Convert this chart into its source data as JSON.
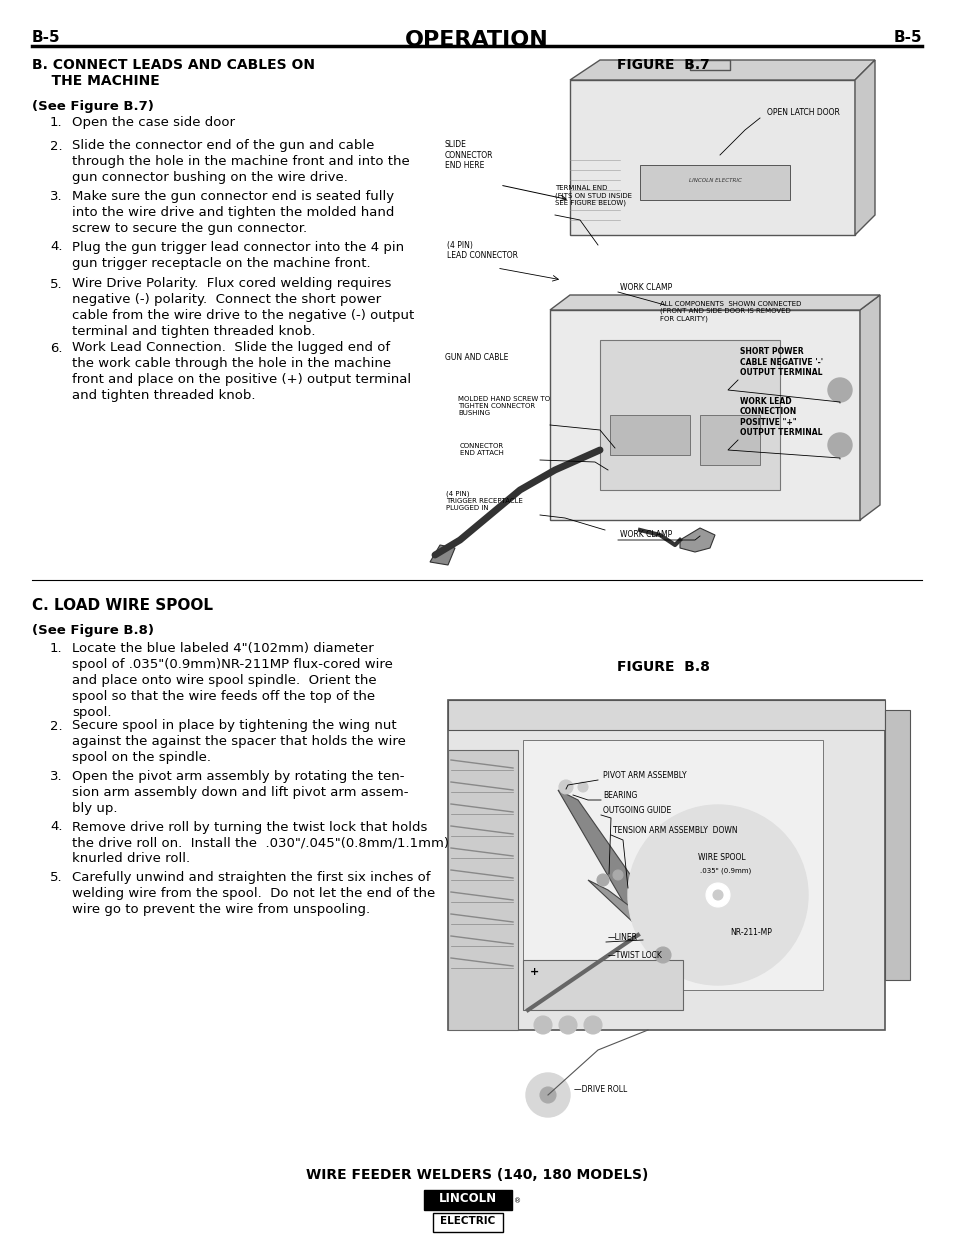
{
  "bg_color": "#ffffff",
  "header_left": "B-5",
  "header_center": "OPERATION",
  "header_right": "B-5",
  "sec_b_title1": "B. CONNECT LEADS AND CABLES ON",
  "sec_b_title2": "    THE MACHINE",
  "fig_b7_label": "FIGURE  B.7",
  "see_fig_b7": "(See Figure B.7)",
  "steps_b": [
    [
      "1.",
      "Open the case side door"
    ],
    [
      "2.",
      "Slide the connector end of the gun and cable\nthrough the hole in the machine front and into the\ngun connector bushing on the wire drive."
    ],
    [
      "3.",
      "Make sure the gun connector end is seated fully\ninto the wire drive and tighten the molded hand\nscrew to secure the gun connector."
    ],
    [
      "4.",
      "Plug the gun trigger lead connector into the 4 pin\ngun trigger receptacle on the machine front."
    ],
    [
      "5.",
      "Wire Drive Polarity.  Flux cored welding requires\nnegative (-) polarity.  Connect the short power\ncable from the wire drive to the negative (-) output\nterminal and tighten threaded knob."
    ],
    [
      "6.",
      "Work Lead Connection.  Slide the lugged end of\nthe work cable through the hole in the machine\nfront and place on the positive (+) output terminal\nand tighten threaded knob."
    ]
  ],
  "sec_c_title": "C. LOAD WIRE SPOOL",
  "fig_b8_label": "FIGURE  B.8",
  "see_fig_b8": "(See Figure B.8)",
  "steps_c": [
    [
      "1.",
      "Locate the blue labeled 4\"(102mm) diameter\nspool of .035\"(0.9mm)NR-211MP flux-cored wire\nand place onto wire spool spindle.  Orient the\nspool so that the wire feeds off the top of the\nspool."
    ],
    [
      "2.",
      "Secure spool in place by tightening the wing nut\nagainst the against the spacer that holds the wire\nspool on the spindle."
    ],
    [
      "3.",
      "Open the pivot arm assembly by rotating the ten-\nsion arm assembly down and lift pivot arm assem-\nbly up."
    ],
    [
      "4.",
      "Remove drive roll by turning the twist lock that holds\nthe drive roll on.  Install the  .030\"/.045\"(0.8mm/1.1mm)\nknurled drive roll."
    ],
    [
      "5.",
      "Carefully unwind and straighten the first six inches of\nwelding wire from the spool.  Do not let the end of the\nwire go to prevent the wire from unspooling."
    ]
  ],
  "footer_text": "WIRE FEEDER WELDERS (140, 180 MODELS)",
  "lincoln_text": "LINCOLN",
  "electric_text": "ELECTRIC",
  "registered": "®"
}
